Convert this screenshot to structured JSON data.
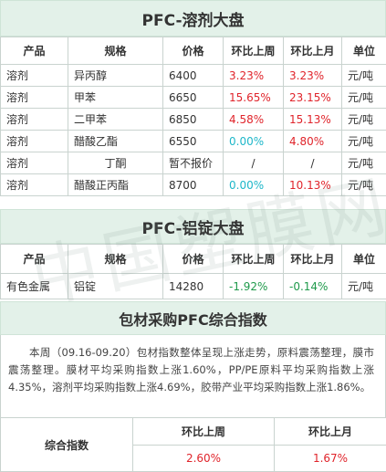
{
  "solvent": {
    "title": "PFC-溶剂大盘",
    "headers": [
      "产品",
      "规格",
      "价格",
      "环比上周",
      "环比上月",
      "单位"
    ],
    "rows": [
      {
        "product": "溶剂",
        "spec": "异丙醇",
        "price": "6400",
        "wow": "3.23%",
        "mom": "3.23%",
        "unit": "元/吨"
      },
      {
        "product": "溶剂",
        "spec": "甲苯",
        "price": "6650",
        "wow": "15.65%",
        "mom": "23.15%",
        "unit": "元/吨"
      },
      {
        "product": "溶剂",
        "spec": "二甲苯",
        "price": "6850",
        "wow": "4.58%",
        "mom": "15.13%",
        "unit": "元/吨"
      },
      {
        "product": "溶剂",
        "spec": "醋酸乙酯",
        "price": "6550",
        "wow": "0.00%",
        "mom": "4.80%",
        "unit": "元/吨"
      },
      {
        "product": "溶剂",
        "spec": "丁酮",
        "price": "暂不报价",
        "wow": "/",
        "mom": "/",
        "unit": "元/吨"
      },
      {
        "product": "溶剂",
        "spec": "醋酸正丙酯",
        "price": "8700",
        "wow": "0.00%",
        "mom": "10.13%",
        "unit": "元/吨"
      }
    ],
    "colors": {
      "up": "#e0242b",
      "flat": "#1eb7c9",
      "neutral": "#333333"
    }
  },
  "aluminum": {
    "title": "PFC-铝锭大盘",
    "headers": [
      "产品",
      "规格",
      "价格",
      "环比上周",
      "环比上月",
      "单位"
    ],
    "rows": [
      {
        "product": "有色金属",
        "spec": "铝锭",
        "price": "14280",
        "wow": "-1.92%",
        "mom": "-0.14%",
        "unit": "元/吨"
      }
    ],
    "colors": {
      "down": "#1f9a4b"
    }
  },
  "index": {
    "title": "包材采购PFC综合指数",
    "summary": "本周（09.16-09.20）包材指数整体呈现上涨走势，原料震荡整理，膜市震荡整理。膜材平均采购指数上涨1.60%，PP/PE原料平均采购指数上涨4.35%，溶剂平均采购指数上涨4.69%，胶带产业平均采购指数上涨1.86%。",
    "label": "综合指数",
    "headers": [
      "环比上周",
      "环比上月"
    ],
    "values": [
      "2.60%",
      "1.67%"
    ]
  },
  "watermark": "中国塑膜网",
  "theme": {
    "banner_bg": "#e3f1e9",
    "border": "#c9d3cf"
  }
}
